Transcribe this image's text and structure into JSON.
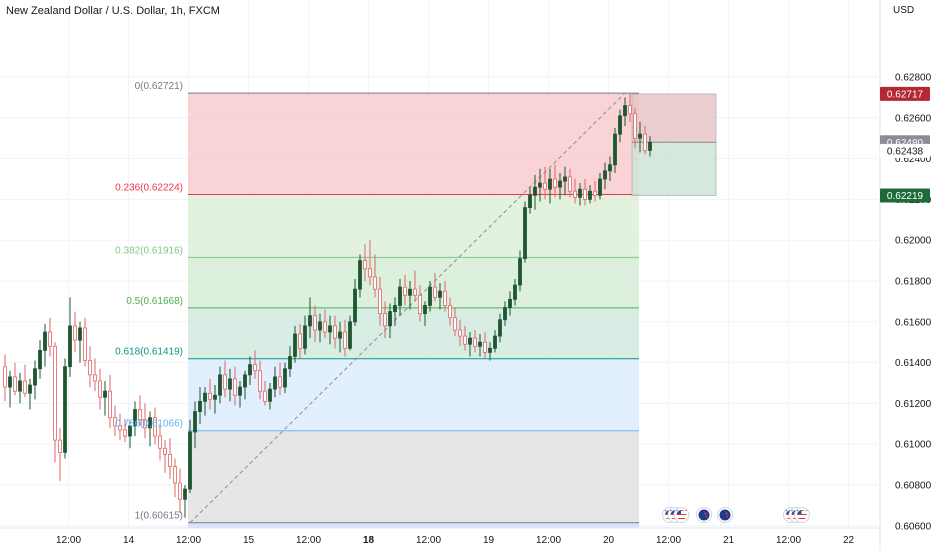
{
  "chart_data": {
    "type": "candlestick",
    "title": "New Zealand Dollar / U.S. Dollar, 1h, FXCM",
    "currency": "USD",
    "ylim": [
      0.6055,
      0.6305
    ],
    "y_ticks": [
      "0.62800",
      "0.62600",
      "0.62400",
      "0.62200",
      "0.62000",
      "0.61800",
      "0.61600",
      "0.61400",
      "0.61200",
      "0.61000",
      "0.60800",
      "0.60600"
    ],
    "x_ticks": [
      {
        "label": "12:00",
        "bar": 13,
        "bold": false
      },
      {
        "label": "14",
        "bar": 25,
        "bold": false
      },
      {
        "label": "12:00",
        "bar": 37,
        "bold": false
      },
      {
        "label": "15",
        "bar": 49,
        "bold": false
      },
      {
        "label": "12:00",
        "bar": 61,
        "bold": false
      },
      {
        "label": "18",
        "bar": 73,
        "bold": true
      },
      {
        "label": "12:00",
        "bar": 85,
        "bold": false
      },
      {
        "label": "19",
        "bar": 97,
        "bold": false
      },
      {
        "label": "12:00",
        "bar": 109,
        "bold": false
      },
      {
        "label": "20",
        "bar": 121,
        "bold": false
      },
      {
        "label": "12:00",
        "bar": 133,
        "bold": false
      },
      {
        "label": "21",
        "bar": 145,
        "bold": false
      },
      {
        "label": "12:00",
        "bar": 157,
        "bold": false
      },
      {
        "label": "22",
        "bar": 169,
        "bold": false
      }
    ],
    "ohlc": [
      [
        0.6138,
        0.6144,
        0.6121,
        0.6128
      ],
      [
        0.6128,
        0.6136,
        0.6118,
        0.6133
      ],
      [
        0.6133,
        0.614,
        0.6124,
        0.6126
      ],
      [
        0.6126,
        0.6135,
        0.612,
        0.6131
      ],
      [
        0.6131,
        0.6139,
        0.6123,
        0.6125
      ],
      [
        0.6125,
        0.6132,
        0.6117,
        0.6129
      ],
      [
        0.6129,
        0.6141,
        0.6122,
        0.6137
      ],
      [
        0.6137,
        0.6151,
        0.6132,
        0.6146
      ],
      [
        0.6146,
        0.6159,
        0.6138,
        0.6155
      ],
      [
        0.6155,
        0.6162,
        0.6143,
        0.6148
      ],
      [
        0.6148,
        0.615,
        0.6091,
        0.6102
      ],
      [
        0.6102,
        0.6108,
        0.6082,
        0.6096
      ],
      [
        0.6096,
        0.6142,
        0.6093,
        0.6138
      ],
      [
        0.6138,
        0.6172,
        0.6133,
        0.6158
      ],
      [
        0.6158,
        0.6165,
        0.6145,
        0.6151
      ],
      [
        0.6151,
        0.616,
        0.614,
        0.6157
      ],
      [
        0.6157,
        0.6162,
        0.6138,
        0.6141
      ],
      [
        0.6141,
        0.6148,
        0.6128,
        0.6134
      ],
      [
        0.6134,
        0.6142,
        0.6126,
        0.6131
      ],
      [
        0.6131,
        0.6137,
        0.6117,
        0.6123
      ],
      [
        0.6123,
        0.6131,
        0.6114,
        0.6126
      ],
      [
        0.6126,
        0.6134,
        0.6108,
        0.6113
      ],
      [
        0.6113,
        0.6119,
        0.6104,
        0.6109
      ],
      [
        0.6109,
        0.6115,
        0.6102,
        0.6107
      ],
      [
        0.6107,
        0.6112,
        0.6101,
        0.6104
      ],
      [
        0.6104,
        0.6112,
        0.6098,
        0.6109
      ],
      [
        0.6109,
        0.6121,
        0.6104,
        0.6117
      ],
      [
        0.6117,
        0.6124,
        0.6109,
        0.6112
      ],
      [
        0.6112,
        0.612,
        0.6103,
        0.6108
      ],
      [
        0.6108,
        0.6116,
        0.6099,
        0.6113
      ],
      [
        0.6113,
        0.6118,
        0.61,
        0.6104
      ],
      [
        0.6104,
        0.611,
        0.6092,
        0.6098
      ],
      [
        0.6098,
        0.6102,
        0.6086,
        0.6095
      ],
      [
        0.6095,
        0.6103,
        0.6083,
        0.6089
      ],
      [
        0.6089,
        0.6093,
        0.6074,
        0.6081
      ],
      [
        0.6081,
        0.6088,
        0.6066,
        0.6073
      ],
      [
        0.6073,
        0.608,
        0.6064,
        0.6078
      ],
      [
        0.6078,
        0.6112,
        0.6076,
        0.6106
      ],
      [
        0.6106,
        0.6121,
        0.6098,
        0.6116
      ],
      [
        0.6116,
        0.6128,
        0.611,
        0.6121
      ],
      [
        0.6121,
        0.6128,
        0.6114,
        0.6125
      ],
      [
        0.6125,
        0.6132,
        0.6117,
        0.6122
      ],
      [
        0.6122,
        0.6129,
        0.6115,
        0.6124
      ],
      [
        0.6124,
        0.6138,
        0.612,
        0.6134
      ],
      [
        0.6134,
        0.6141,
        0.6123,
        0.6127
      ],
      [
        0.6127,
        0.6137,
        0.6121,
        0.6132
      ],
      [
        0.6132,
        0.6138,
        0.6119,
        0.6124
      ],
      [
        0.6124,
        0.6131,
        0.6118,
        0.6128
      ],
      [
        0.6128,
        0.6136,
        0.6122,
        0.6134
      ],
      [
        0.6134,
        0.6143,
        0.6129,
        0.6139
      ],
      [
        0.6139,
        0.6146,
        0.6132,
        0.6136
      ],
      [
        0.6136,
        0.6141,
        0.6122,
        0.6126
      ],
      [
        0.6126,
        0.6131,
        0.6119,
        0.6121
      ],
      [
        0.6121,
        0.613,
        0.6117,
        0.6127
      ],
      [
        0.6127,
        0.6138,
        0.6123,
        0.6133
      ],
      [
        0.6133,
        0.614,
        0.6124,
        0.6128
      ],
      [
        0.6128,
        0.614,
        0.6125,
        0.6137
      ],
      [
        0.6137,
        0.6148,
        0.6133,
        0.6143
      ],
      [
        0.6143,
        0.6158,
        0.614,
        0.6154
      ],
      [
        0.6154,
        0.6159,
        0.6142,
        0.6147
      ],
      [
        0.6147,
        0.6163,
        0.6144,
        0.6158
      ],
      [
        0.6158,
        0.6172,
        0.6152,
        0.6163
      ],
      [
        0.6163,
        0.6168,
        0.615,
        0.6156
      ],
      [
        0.6156,
        0.6164,
        0.615,
        0.616
      ],
      [
        0.616,
        0.6166,
        0.6152,
        0.6155
      ],
      [
        0.6155,
        0.6163,
        0.6149,
        0.6158
      ],
      [
        0.6158,
        0.6163,
        0.6147,
        0.6152
      ],
      [
        0.6152,
        0.616,
        0.6145,
        0.6155
      ],
      [
        0.6155,
        0.6161,
        0.6143,
        0.6147
      ],
      [
        0.6147,
        0.6163,
        0.6146,
        0.616
      ],
      [
        0.616,
        0.6181,
        0.6158,
        0.6176
      ],
      [
        0.6176,
        0.6193,
        0.6172,
        0.619
      ],
      [
        0.619,
        0.6198,
        0.618,
        0.6186
      ],
      [
        0.6186,
        0.62,
        0.6178,
        0.6182
      ],
      [
        0.6182,
        0.6193,
        0.6172,
        0.6176
      ],
      [
        0.6176,
        0.6182,
        0.6158,
        0.6164
      ],
      [
        0.6164,
        0.617,
        0.6152,
        0.6158
      ],
      [
        0.6158,
        0.6169,
        0.6152,
        0.6165
      ],
      [
        0.6165,
        0.6172,
        0.6158,
        0.6168
      ],
      [
        0.6168,
        0.6181,
        0.6163,
        0.6177
      ],
      [
        0.6177,
        0.6183,
        0.6168,
        0.6173
      ],
      [
        0.6173,
        0.618,
        0.6166,
        0.6176
      ],
      [
        0.6176,
        0.6185,
        0.617,
        0.6173
      ],
      [
        0.6173,
        0.6178,
        0.616,
        0.6164
      ],
      [
        0.6164,
        0.617,
        0.6158,
        0.6168
      ],
      [
        0.6168,
        0.618,
        0.6165,
        0.6177
      ],
      [
        0.6177,
        0.6184,
        0.617,
        0.6172
      ],
      [
        0.6172,
        0.6179,
        0.6166,
        0.6175
      ],
      [
        0.6175,
        0.618,
        0.6165,
        0.6168
      ],
      [
        0.6168,
        0.6172,
        0.6158,
        0.6162
      ],
      [
        0.6162,
        0.6167,
        0.6153,
        0.6156
      ],
      [
        0.6156,
        0.6161,
        0.6148,
        0.6153
      ],
      [
        0.6153,
        0.6158,
        0.6146,
        0.6149
      ],
      [
        0.6149,
        0.6155,
        0.6143,
        0.6152
      ],
      [
        0.6152,
        0.6156,
        0.6145,
        0.6148
      ],
      [
        0.6148,
        0.6154,
        0.6143,
        0.615
      ],
      [
        0.615,
        0.6155,
        0.6142,
        0.6145
      ],
      [
        0.6145,
        0.615,
        0.6141,
        0.6147
      ],
      [
        0.6147,
        0.6156,
        0.6145,
        0.6153
      ],
      [
        0.6153,
        0.6164,
        0.615,
        0.6161
      ],
      [
        0.6161,
        0.617,
        0.6158,
        0.6167
      ],
      [
        0.6167,
        0.6175,
        0.6163,
        0.6171
      ],
      [
        0.6171,
        0.6181,
        0.6168,
        0.6178
      ],
      [
        0.6178,
        0.6195,
        0.6175,
        0.6191
      ],
      [
        0.6191,
        0.6219,
        0.6189,
        0.6216
      ],
      [
        0.6216,
        0.6226,
        0.6213,
        0.6222
      ],
      [
        0.6222,
        0.6232,
        0.6215,
        0.6226
      ],
      [
        0.6226,
        0.6235,
        0.6219,
        0.6228
      ],
      [
        0.6228,
        0.6236,
        0.622,
        0.6225
      ],
      [
        0.6225,
        0.6235,
        0.6218,
        0.623
      ],
      [
        0.623,
        0.6237,
        0.6221,
        0.6226
      ],
      [
        0.6226,
        0.6233,
        0.622,
        0.6229
      ],
      [
        0.6229,
        0.6236,
        0.6222,
        0.6231
      ],
      [
        0.6231,
        0.6235,
        0.6221,
        0.6224
      ],
      [
        0.6224,
        0.623,
        0.6218,
        0.6221
      ],
      [
        0.6221,
        0.6228,
        0.6217,
        0.6225
      ],
      [
        0.6225,
        0.623,
        0.6217,
        0.622
      ],
      [
        0.622,
        0.6227,
        0.6218,
        0.6224
      ],
      [
        0.6224,
        0.6229,
        0.6219,
        0.6222
      ],
      [
        0.6222,
        0.6233,
        0.622,
        0.623
      ],
      [
        0.623,
        0.6238,
        0.6225,
        0.6234
      ],
      [
        0.6234,
        0.6241,
        0.6229,
        0.6237
      ],
      [
        0.6237,
        0.6255,
        0.6233,
        0.6252
      ],
      [
        0.6252,
        0.6264,
        0.6248,
        0.6261
      ],
      [
        0.6261,
        0.627,
        0.6256,
        0.6266
      ],
      [
        0.6266,
        0.6272,
        0.6258,
        0.6262
      ],
      [
        0.6262,
        0.6265,
        0.6245,
        0.625
      ],
      [
        0.625,
        0.6258,
        0.6243,
        0.6252
      ],
      [
        0.6252,
        0.6256,
        0.6242,
        0.6244
      ],
      [
        0.6244,
        0.6251,
        0.6241,
        0.6248
      ]
    ],
    "fib": {
      "levels": [
        {
          "label": "0(0.62721)",
          "price": 0.62721,
          "text_color": "#787b86",
          "line_color": "#787b86"
        },
        {
          "label": "0.236(0.62224)",
          "price": 0.62224,
          "text_color": "#f23645",
          "line_color": "#f23645"
        },
        {
          "label": "0.382(0.61916)",
          "price": 0.61916,
          "text_color": "#81c784",
          "line_color": "#81c784"
        },
        {
          "label": "0.5(0.61668)",
          "price": 0.61668,
          "text_color": "#4caf50",
          "line_color": "#4caf50"
        },
        {
          "label": "0.618(0.61419)",
          "price": 0.61419,
          "text_color": "#089981",
          "line_color": "#089981"
        },
        {
          "label": "0.786(0.61066)",
          "price": 0.61066,
          "text_color": "#64b5f6",
          "line_color": "#64b5f6"
        },
        {
          "label": "1(0.60615)",
          "price": 0.60615,
          "text_color": "#787b86",
          "line_color": "#787b86"
        }
      ],
      "zone_colors": [
        "#f7c1c5",
        "#d6ecd2",
        "#cfe8cf",
        "#c7e6d9",
        "#d6e8fb",
        "#dcdcdc",
        "#cdd8f7"
      ],
      "trendline": {
        "from_bar": 37,
        "from_price": 0.60615,
        "to_bar": 124,
        "to_price": 0.62721
      }
    },
    "position": {
      "from_bar": 126,
      "to_bar": 141,
      "entry": 0.6248,
      "stop": 0.62717,
      "target": 0.62219,
      "stop_color": "#e6c5c8",
      "target_color": "#cfe3d5"
    },
    "price_tags": [
      {
        "text": "0.62717",
        "price": 0.62717,
        "bg": "#b22833",
        "fg": "#ffffff"
      },
      {
        "text": "0.62480",
        "price": 0.6248,
        "bg": "#8a8d96",
        "fg": "#ffffff"
      },
      {
        "text": "0.62438",
        "price": 0.62438,
        "bg": "#ffffff",
        "fg": "#131722"
      },
      {
        "text": "0.62219",
        "price": 0.62219,
        "bg": "#1e6b3a",
        "fg": "#ffffff"
      }
    ],
    "event_icons": [
      {
        "bar": 133.4,
        "icon": "us-flag-icon"
      },
      {
        "bar": 134.5,
        "icon": "us-flag-icon"
      },
      {
        "bar": 135.7,
        "icon": "us-flag-icon"
      },
      {
        "bar": 140.2,
        "icon": "nz-flag-icon"
      },
      {
        "bar": 144.4,
        "icon": "nz-flag-icon"
      },
      {
        "bar": 157.6,
        "icon": "us-flag-icon"
      },
      {
        "bar": 158.7,
        "icon": "us-flag-icon"
      },
      {
        "bar": 159.8,
        "icon": "us-flag-icon"
      }
    ],
    "up_color": "#1e5631",
    "down_color": "#e06666",
    "grid": true
  }
}
